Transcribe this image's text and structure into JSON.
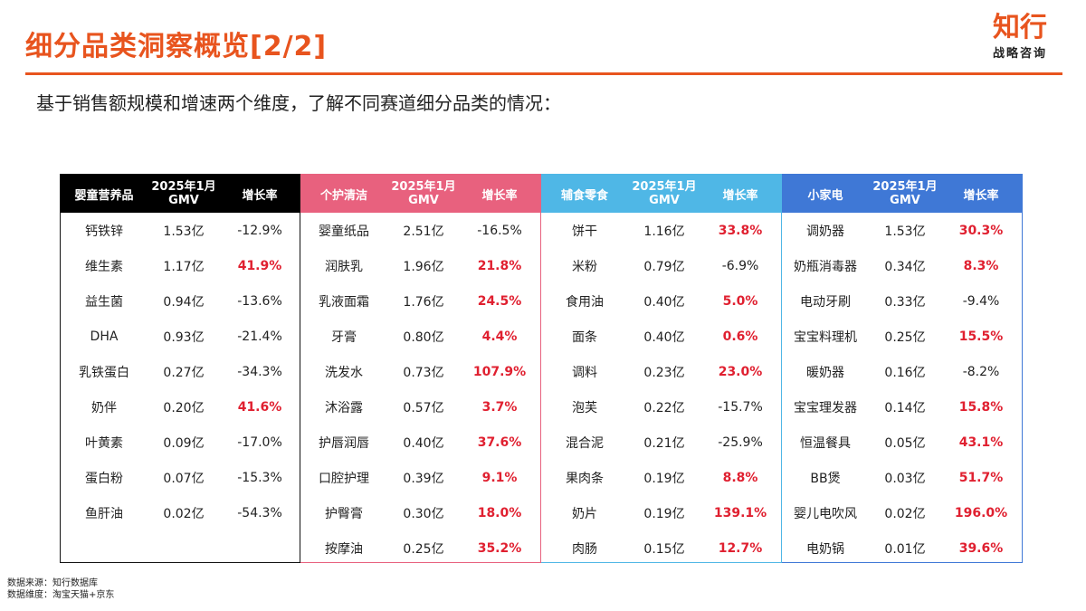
{
  "header": {
    "title": "细分品类洞察概览[2/2]",
    "logo_main": "知行",
    "logo_sub": "战略咨询"
  },
  "subtitle": "基于销售额规模和增速两个维度，了解不同赛道细分品类的情况：",
  "colors": {
    "accent": "#E8541E",
    "positive": "#E02030",
    "panel0": "#000000",
    "panel1": "#E8617E",
    "panel2": "#4FB7E6",
    "panel3": "#3F78D6"
  },
  "tables": [
    {
      "category": "婴童营养品",
      "gmv_header": "2025年1月 GMV",
      "growth_header": "增长率",
      "rows": [
        {
          "name": "钙铁锌",
          "gmv": "1.53亿",
          "growth": "-12.9%",
          "positive": false
        },
        {
          "name": "维生素",
          "gmv": "1.17亿",
          "growth": "41.9%",
          "positive": true
        },
        {
          "name": "益生菌",
          "gmv": "0.94亿",
          "growth": "-13.6%",
          "positive": false
        },
        {
          "name": "DHA",
          "gmv": "0.93亿",
          "growth": "-21.4%",
          "positive": false
        },
        {
          "name": "乳铁蛋白",
          "gmv": "0.27亿",
          "growth": "-34.3%",
          "positive": false
        },
        {
          "name": "奶伴",
          "gmv": "0.20亿",
          "growth": "41.6%",
          "positive": true
        },
        {
          "name": "叶黄素",
          "gmv": "0.09亿",
          "growth": "-17.0%",
          "positive": false
        },
        {
          "name": "蛋白粉",
          "gmv": "0.07亿",
          "growth": "-15.3%",
          "positive": false
        },
        {
          "name": "鱼肝油",
          "gmv": "0.02亿",
          "growth": "-54.3%",
          "positive": false
        }
      ]
    },
    {
      "category": "个护清洁",
      "gmv_header": "2025年1月 GMV",
      "growth_header": "增长率",
      "rows": [
        {
          "name": "婴童纸品",
          "gmv": "2.51亿",
          "growth": "-16.5%",
          "positive": false
        },
        {
          "name": "润肤乳",
          "gmv": "1.96亿",
          "growth": "21.8%",
          "positive": true
        },
        {
          "name": "乳液面霜",
          "gmv": "1.76亿",
          "growth": "24.5%",
          "positive": true
        },
        {
          "name": "牙膏",
          "gmv": "0.80亿",
          "growth": "4.4%",
          "positive": true
        },
        {
          "name": "洗发水",
          "gmv": "0.73亿",
          "growth": "107.9%",
          "positive": true
        },
        {
          "name": "沐浴露",
          "gmv": "0.57亿",
          "growth": "3.7%",
          "positive": true
        },
        {
          "name": "护唇润唇",
          "gmv": "0.40亿",
          "growth": "37.6%",
          "positive": true
        },
        {
          "name": "口腔护理",
          "gmv": "0.39亿",
          "growth": "9.1%",
          "positive": true
        },
        {
          "name": "护臀膏",
          "gmv": "0.30亿",
          "growth": "18.0%",
          "positive": true
        },
        {
          "name": "按摩油",
          "gmv": "0.25亿",
          "growth": "35.2%",
          "positive": true
        }
      ]
    },
    {
      "category": "辅食零食",
      "gmv_header": "2025年1月 GMV",
      "growth_header": "增长率",
      "rows": [
        {
          "name": "饼干",
          "gmv": "1.16亿",
          "growth": "33.8%",
          "positive": true
        },
        {
          "name": "米粉",
          "gmv": "0.79亿",
          "growth": "-6.9%",
          "positive": false
        },
        {
          "name": "食用油",
          "gmv": "0.40亿",
          "growth": "5.0%",
          "positive": true
        },
        {
          "name": "面条",
          "gmv": "0.40亿",
          "growth": "0.6%",
          "positive": true
        },
        {
          "name": "调料",
          "gmv": "0.23亿",
          "growth": "23.0%",
          "positive": true
        },
        {
          "name": "泡芙",
          "gmv": "0.22亿",
          "growth": "-15.7%",
          "positive": false
        },
        {
          "name": "混合泥",
          "gmv": "0.21亿",
          "growth": "-25.9%",
          "positive": false
        },
        {
          "name": "果肉条",
          "gmv": "0.19亿",
          "growth": "8.8%",
          "positive": true
        },
        {
          "name": "奶片",
          "gmv": "0.19亿",
          "growth": "139.1%",
          "positive": true
        },
        {
          "name": "肉肠",
          "gmv": "0.15亿",
          "growth": "12.7%",
          "positive": true
        }
      ]
    },
    {
      "category": "小家电",
      "gmv_header": "2025年1月 GMV",
      "growth_header": "增长率",
      "rows": [
        {
          "name": "调奶器",
          "gmv": "1.53亿",
          "growth": "30.3%",
          "positive": true
        },
        {
          "name": "奶瓶消毒器",
          "gmv": "0.34亿",
          "growth": "8.3%",
          "positive": true
        },
        {
          "name": "电动牙刷",
          "gmv": "0.33亿",
          "growth": "-9.4%",
          "positive": false
        },
        {
          "name": "宝宝料理机",
          "gmv": "0.25亿",
          "growth": "15.5%",
          "positive": true
        },
        {
          "name": "暖奶器",
          "gmv": "0.16亿",
          "growth": "-8.2%",
          "positive": false
        },
        {
          "name": "宝宝理发器",
          "gmv": "0.14亿",
          "growth": "15.8%",
          "positive": true
        },
        {
          "name": "恒温餐具",
          "gmv": "0.05亿",
          "growth": "43.1%",
          "positive": true
        },
        {
          "name": "BB煲",
          "gmv": "0.03亿",
          "growth": "51.7%",
          "positive": true
        },
        {
          "name": "婴儿电吹风",
          "gmv": "0.02亿",
          "growth": "196.0%",
          "positive": true
        },
        {
          "name": "电奶锅",
          "gmv": "0.01亿",
          "growth": "39.6%",
          "positive": true
        }
      ]
    }
  ],
  "footer": {
    "source": "数据来源：知行数据库",
    "dimension": "数据维度：淘宝天猫+京东"
  }
}
